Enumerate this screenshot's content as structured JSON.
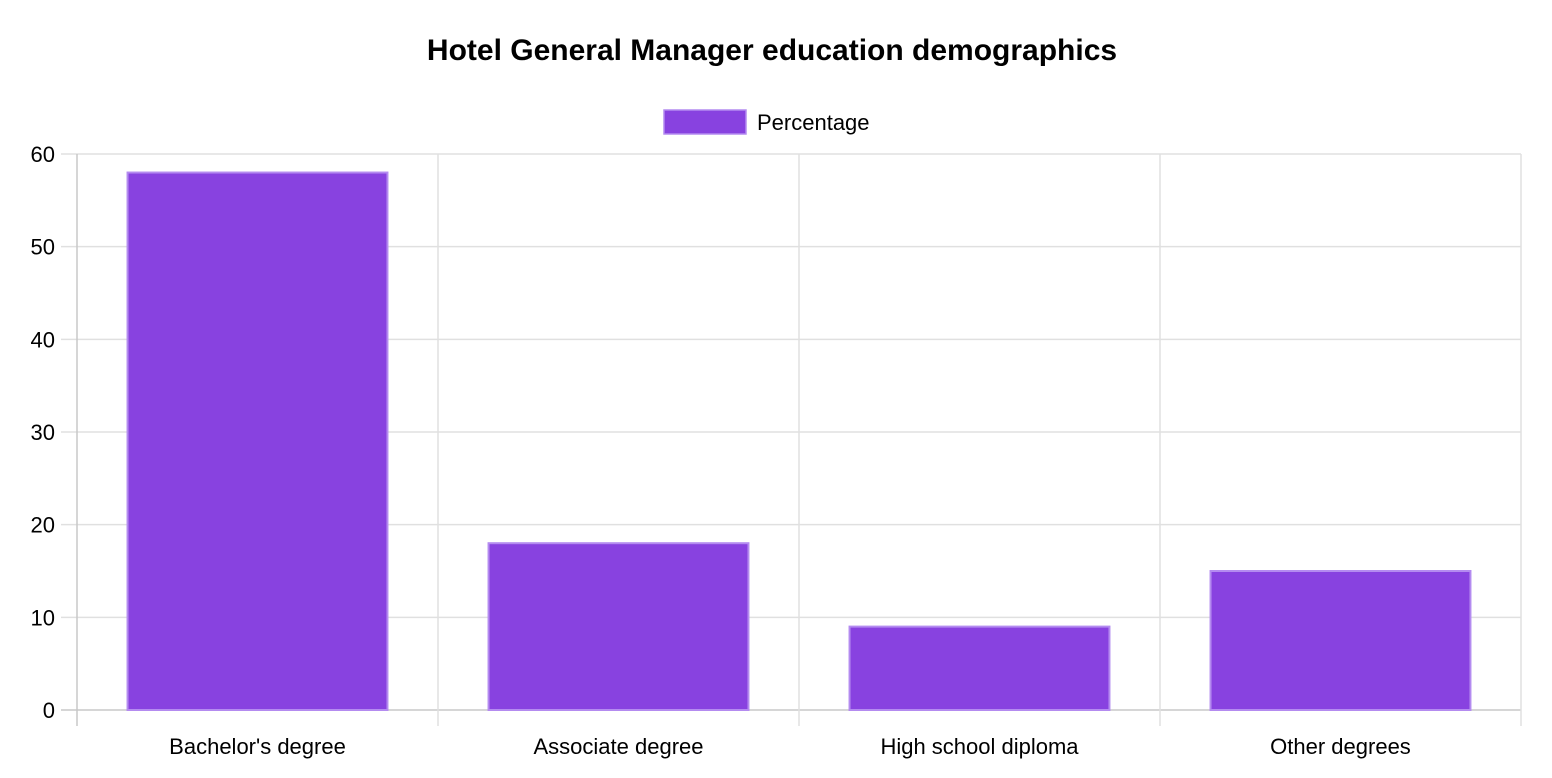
{
  "chart_data": {
    "type": "bar",
    "title": "Hotel General Manager education demographics",
    "categories": [
      "Bachelor's degree",
      "Associate degree",
      "High school diploma",
      "Other degrees"
    ],
    "series": [
      {
        "name": "Percentage",
        "values": [
          58,
          18,
          9,
          15
        ]
      }
    ],
    "xlabel": "",
    "ylabel": "",
    "ylim": [
      0,
      60
    ],
    "yticks": [
      0,
      10,
      20,
      30,
      40,
      50,
      60
    ],
    "grid": true,
    "legend_position": "top-center",
    "colors": {
      "bar_fill": "#8842e0",
      "bar_stroke": "#b48bf0"
    }
  }
}
